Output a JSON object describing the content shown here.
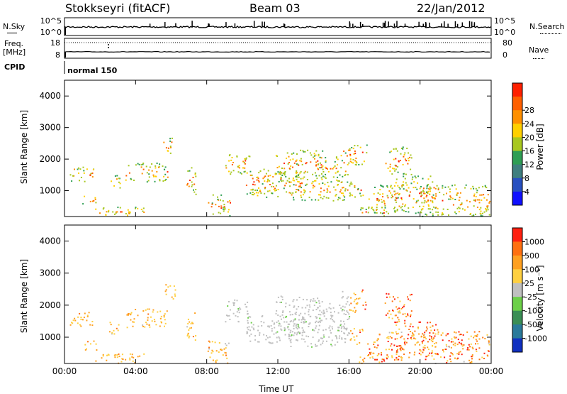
{
  "header": {
    "station": "Stokkseyri (fitACF)",
    "beam": "Beam 03",
    "date": "22/Jan/2012"
  },
  "noise_panel": {
    "left_label": "N.Sky",
    "right_label": "N.Search",
    "left_ticks": [
      "10^5",
      "10^0"
    ],
    "right_ticks": [
      "10^5",
      "10^0"
    ]
  },
  "freq_panel": {
    "left_label_1": "Freq.",
    "left_label_2": "[MHz]",
    "right_label": "Nave",
    "left_ticks": [
      "18",
      "8"
    ],
    "right_ticks": [
      "80",
      "0"
    ]
  },
  "cpid_panel": {
    "label": "CPID",
    "program": "normal 150"
  },
  "chart_data": [
    {
      "type": "heatmap",
      "quantity": "Power",
      "ylabel": "Slant Range [km]",
      "xlabel": "",
      "ylim": [
        180,
        4500
      ],
      "xlim": [
        0,
        24
      ],
      "x_ticks": [
        "00:00",
        "04:00",
        "08:00",
        "12:00",
        "16:00",
        "20:00",
        "00:00"
      ],
      "y_ticks": [
        1000,
        2000,
        3000,
        4000
      ],
      "colorbar": {
        "label": "Power [dB]",
        "ticks": [
          "4",
          "8",
          "12",
          "16",
          "20",
          "24",
          "28"
        ],
        "colors": [
          "#1010ff",
          "#2850c0",
          "#3f7f7f",
          "#2e9e54",
          "#a8c820",
          "#ffd000",
          "#ff9000",
          "#ff6000",
          "#ff2000"
        ]
      }
    },
    {
      "type": "heatmap",
      "quantity": "Velocity",
      "ylabel": "Slant Range [km]",
      "xlabel": "Time UT",
      "ylim": [
        180,
        4500
      ],
      "xlim": [
        0,
        24
      ],
      "x_ticks": [
        "00:00",
        "04:00",
        "08:00",
        "12:00",
        "16:00",
        "20:00",
        "00:00"
      ],
      "y_ticks": [
        1000,
        2000,
        3000,
        4000
      ],
      "colorbar": {
        "label": "Velocity [m s⁻¹]",
        "ticks": [
          "1000",
          "500",
          "100",
          "25",
          "-25",
          "-100",
          "-500",
          "-1000"
        ],
        "colors": [
          "#1030c0",
          "#2a7a9a",
          "#3a8e55",
          "#6cd048",
          "#c0c0c0",
          "#ffd040",
          "#ffa020",
          "#ff7010",
          "#ff2010"
        ]
      }
    }
  ]
}
